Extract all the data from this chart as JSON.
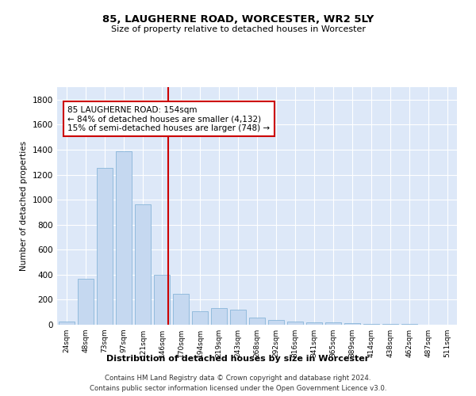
{
  "title": "85, LAUGHERNE ROAD, WORCESTER, WR2 5LY",
  "subtitle": "Size of property relative to detached houses in Worcester",
  "xlabel": "Distribution of detached houses by size in Worcester",
  "ylabel": "Number of detached properties",
  "bar_color": "#c5d8f0",
  "bar_edge_color": "#7aadd4",
  "background_color": "#dde8f8",
  "grid_color": "#ffffff",
  "categories": [
    "24sqm",
    "48sqm",
    "73sqm",
    "97sqm",
    "121sqm",
    "146sqm",
    "170sqm",
    "194sqm",
    "219sqm",
    "243sqm",
    "268sqm",
    "292sqm",
    "316sqm",
    "341sqm",
    "365sqm",
    "389sqm",
    "414sqm",
    "438sqm",
    "462sqm",
    "487sqm",
    "511sqm"
  ],
  "values": [
    28,
    370,
    1255,
    1390,
    960,
    400,
    250,
    110,
    130,
    120,
    60,
    35,
    25,
    20,
    18,
    12,
    8,
    5,
    4,
    3,
    2
  ],
  "red_line_x": 5.35,
  "annotation_text": "85 LAUGHERNE ROAD: 154sqm\n← 84% of detached houses are smaller (4,132)\n15% of semi-detached houses are larger (748) →",
  "annotation_box_color": "#ffffff",
  "annotation_box_edge": "#cc0000",
  "red_line_color": "#cc0000",
  "ylim": [
    0,
    1900
  ],
  "yticks": [
    0,
    200,
    400,
    600,
    800,
    1000,
    1200,
    1400,
    1600,
    1800
  ],
  "footer_line1": "Contains HM Land Registry data © Crown copyright and database right 2024.",
  "footer_line2": "Contains public sector information licensed under the Open Government Licence v3.0."
}
